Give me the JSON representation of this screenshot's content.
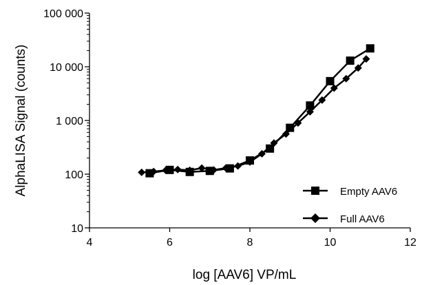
{
  "chart_data": {
    "type": "line",
    "xlabel": "log [AAV6] VP/mL",
    "ylabel": "AlphaLISA Signal (counts)",
    "xlim": [
      4,
      12
    ],
    "ylim": [
      10,
      100000
    ],
    "y_scale": "log",
    "x_ticks": [
      4,
      6,
      8,
      10,
      12
    ],
    "x_tick_labels": [
      "4",
      "6",
      "8",
      "10",
      "12"
    ],
    "y_ticks": [
      10,
      100,
      1000,
      10000,
      100000
    ],
    "y_tick_labels": [
      "10",
      "100",
      "1 000",
      "10 000",
      "100 000"
    ],
    "grid": false,
    "legend_position": "bottom-right",
    "series": [
      {
        "name": "Empty AAV6",
        "marker": "square",
        "color": "#000000",
        "x": [
          5.5,
          6.0,
          6.5,
          7.0,
          7.5,
          8.0,
          8.5,
          9.0,
          9.5,
          10.0,
          10.5,
          11.0
        ],
        "y": [
          104,
          120,
          110,
          115,
          128,
          180,
          300,
          730,
          1900,
          5400,
          13000,
          22000
        ]
      },
      {
        "name": "Full AAV6",
        "marker": "diamond",
        "color": "#000000",
        "x": [
          5.3,
          5.6,
          5.9,
          6.2,
          6.5,
          6.8,
          7.1,
          7.4,
          7.7,
          8.0,
          8.3,
          8.6,
          8.9,
          9.2,
          9.5,
          9.8,
          10.1,
          10.4,
          10.7,
          10.9
        ],
        "y": [
          108,
          112,
          118,
          122,
          118,
          130,
          120,
          130,
          142,
          168,
          240,
          380,
          560,
          900,
          1450,
          2400,
          4000,
          6000,
          9500,
          14000
        ]
      }
    ]
  }
}
